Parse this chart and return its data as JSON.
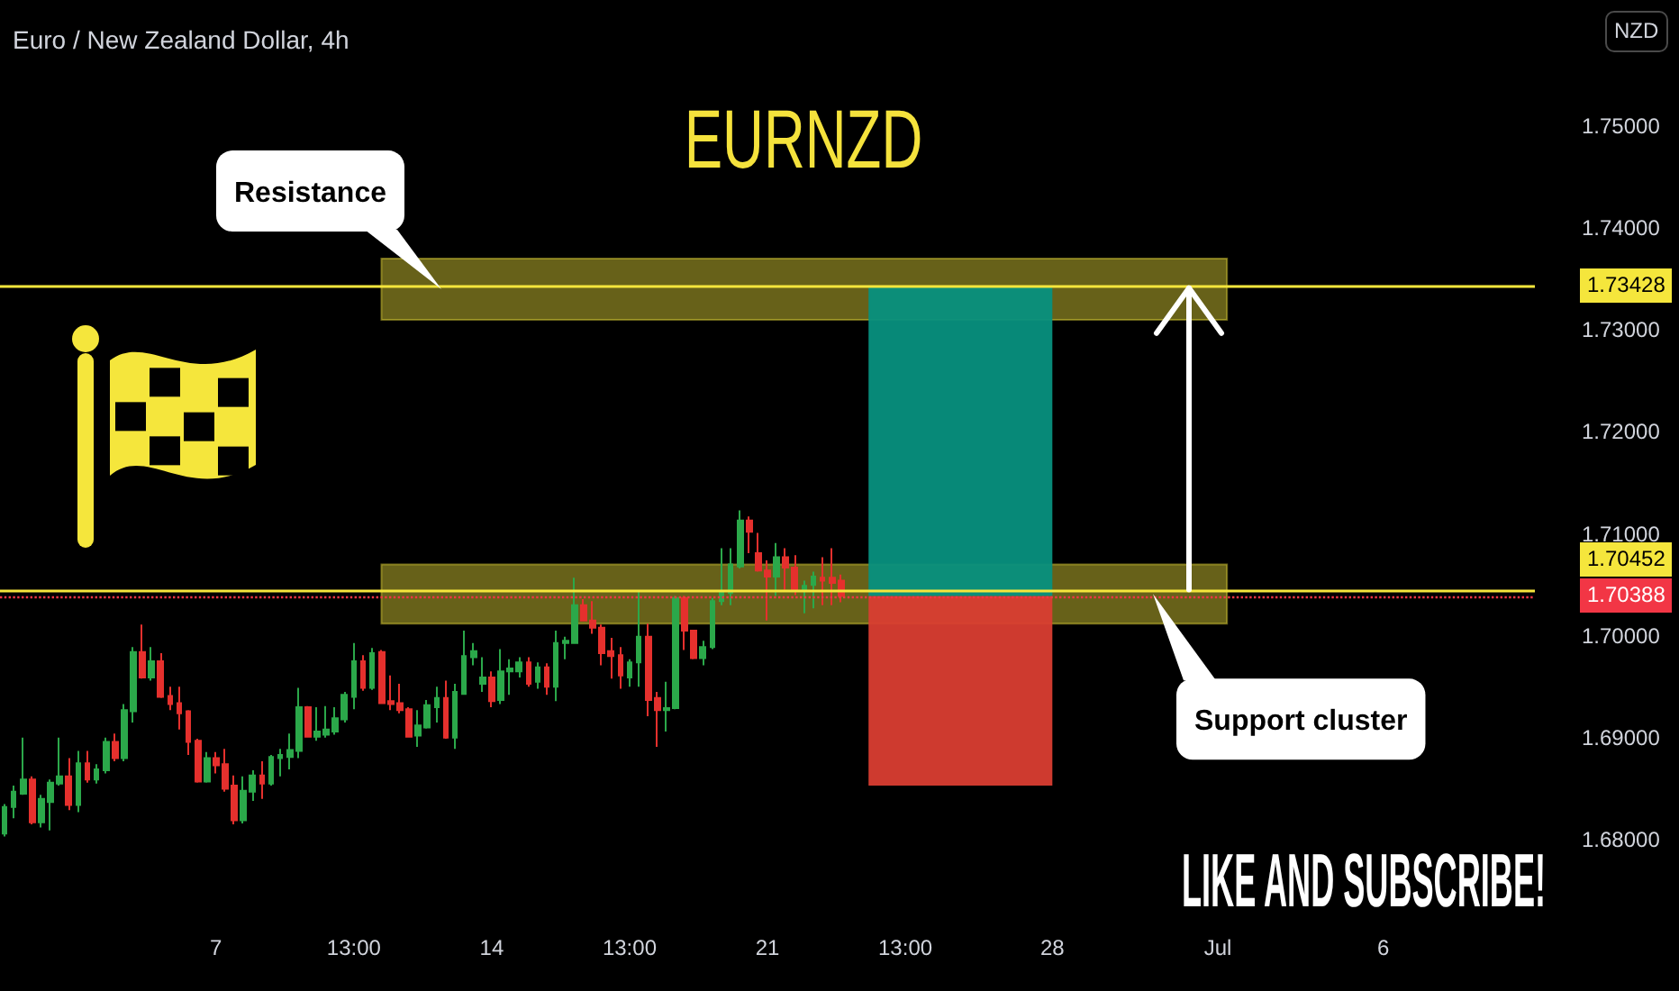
{
  "chart_data": {
    "type": "candlestick",
    "title": "EURNZD",
    "subtitle": "Euro / New Zealand Dollar, 4h",
    "ylabel": "NZD",
    "annotations": [
      "LIKE AND SUBSCRIBE!"
    ],
    "categories": [
      null,
      null,
      null,
      null,
      null,
      null,
      null,
      null,
      null,
      null,
      null,
      null,
      null,
      null,
      null,
      null,
      null,
      null,
      null,
      null,
      null,
      null,
      null,
      "7",
      null,
      null,
      null,
      null,
      null,
      null,
      null,
      null,
      null,
      null,
      null,
      null,
      null,
      null,
      "13:00",
      null,
      null,
      null,
      null,
      null,
      null,
      null,
      null,
      null,
      null,
      null,
      null,
      null,
      null,
      "14",
      null,
      null,
      null,
      null,
      null,
      null,
      null,
      null,
      null,
      null,
      null,
      null,
      null,
      null,
      "13:00",
      null,
      null,
      null,
      null,
      null,
      null,
      null,
      null,
      null,
      null,
      null,
      null,
      null,
      null,
      "21",
      null,
      null,
      null,
      null,
      null,
      null,
      null,
      null,
      null,
      null,
      null,
      null,
      null,
      null,
      "13:00",
      null,
      null,
      null,
      null,
      null,
      null,
      null,
      null,
      null,
      null,
      null,
      null,
      null,
      null,
      null,
      "28",
      null,
      null,
      null,
      null,
      null,
      null,
      null,
      null,
      null,
      null,
      null,
      null,
      null,
      null,
      null,
      null,
      null,
      "Jul",
      null,
      null,
      null,
      null,
      null,
      null,
      null,
      null,
      null,
      null,
      null,
      null,
      null,
      null,
      null,
      null,
      null,
      "6",
      null,
      null,
      null,
      null,
      null,
      null,
      null,
      null,
      null,
      null,
      null,
      null,
      null,
      null,
      null,
      null
    ],
    "ohlc": [
      [
        1.6806,
        1.6835,
        1.6803,
        1.6832
      ],
      [
        1.6832,
        1.6853,
        1.6821,
        1.6847
      ],
      [
        1.6845,
        1.69,
        1.6844,
        1.6859
      ],
      [
        1.6859,
        1.6862,
        1.6815,
        1.6817
      ],
      [
        1.6817,
        1.6844,
        1.6812,
        1.684
      ],
      [
        1.6837,
        1.6859,
        1.6809,
        1.6856
      ],
      [
        1.6855,
        1.69,
        1.6853,
        1.6862
      ],
      [
        1.6862,
        1.688,
        1.6829,
        1.6834
      ],
      [
        1.6834,
        1.6887,
        1.6827,
        1.6875
      ],
      [
        1.6875,
        1.6887,
        1.6856,
        1.6859
      ],
      [
        1.6859,
        1.6874,
        1.6855,
        1.6869
      ],
      [
        1.6868,
        1.69,
        1.6865,
        1.6896
      ],
      [
        1.6896,
        1.6904,
        1.6877,
        1.688
      ],
      [
        1.688,
        1.6933,
        1.6877,
        1.6927
      ],
      [
        1.6926,
        1.6989,
        1.6915,
        1.6984
      ],
      [
        1.6984,
        1.7011,
        1.6958,
        1.6959
      ],
      [
        1.6959,
        1.6989,
        1.6956,
        1.6975
      ],
      [
        1.6975,
        1.6983,
        1.6939,
        1.694
      ],
      [
        1.6941,
        1.695,
        1.6927,
        1.6933
      ],
      [
        1.6934,
        1.695,
        1.6908,
        1.6924
      ],
      [
        1.6926,
        1.6927,
        1.6883,
        1.6896
      ],
      [
        1.6897,
        1.6899,
        1.6856,
        1.6857
      ],
      [
        1.6857,
        1.6886,
        1.6856,
        1.688
      ],
      [
        1.688,
        1.6886,
        1.6865,
        1.6873
      ],
      [
        1.6874,
        1.6889,
        1.6847,
        1.685
      ],
      [
        1.6853,
        1.6863,
        1.6815,
        1.6819
      ],
      [
        1.6819,
        1.6862,
        1.6816,
        1.6848
      ],
      [
        1.6847,
        1.6868,
        1.6838,
        1.6863
      ],
      [
        1.6863,
        1.6877,
        1.684,
        1.6855
      ],
      [
        1.6855,
        1.6883,
        1.6853,
        1.6881
      ],
      [
        1.688,
        1.6889,
        1.6862,
        1.6883
      ],
      [
        1.6881,
        1.6904,
        1.6869,
        1.6888
      ],
      [
        1.6887,
        1.6949,
        1.688,
        1.693
      ],
      [
        1.693,
        1.6931,
        1.69,
        1.6901
      ],
      [
        1.6901,
        1.693,
        1.6897,
        1.6906
      ],
      [
        1.6903,
        1.6931,
        1.69,
        1.6908
      ],
      [
        1.6906,
        1.693,
        1.6903,
        1.6919
      ],
      [
        1.6918,
        1.6945,
        1.6915,
        1.6942
      ],
      [
        1.694,
        1.6993,
        1.6928,
        1.6975
      ],
      [
        1.6975,
        1.6981,
        1.6946,
        1.6949
      ],
      [
        1.6949,
        1.6988,
        1.6947,
        1.6983
      ],
      [
        1.6984,
        1.6986,
        1.6933,
        1.6934
      ],
      [
        1.6936,
        1.6961,
        1.6927,
        1.6933
      ],
      [
        1.6934,
        1.6953,
        1.6924,
        1.6927
      ],
      [
        1.6928,
        1.693,
        1.69,
        1.6901
      ],
      [
        1.6902,
        1.6927,
        1.6891,
        1.6912
      ],
      [
        1.691,
        1.6937,
        1.6909,
        1.6932
      ],
      [
        1.693,
        1.695,
        1.6915,
        1.6939
      ],
      [
        1.6939,
        1.6956,
        1.6899,
        1.69
      ],
      [
        1.69,
        1.6953,
        1.6889,
        1.6945
      ],
      [
        1.6943,
        1.7005,
        1.6942,
        1.698
      ],
      [
        1.6979,
        1.6993,
        1.6971,
        1.6985
      ],
      [
        1.6953,
        1.6979,
        1.6945,
        1.6959
      ],
      [
        1.6959,
        1.6965,
        1.693,
        1.6936
      ],
      [
        1.6937,
        1.6987,
        1.6933,
        1.6965
      ],
      [
        1.6965,
        1.6977,
        1.6942,
        1.6968
      ],
      [
        1.6965,
        1.6979,
        1.6959,
        1.6974
      ],
      [
        1.6974,
        1.6979,
        1.695,
        1.6953
      ],
      [
        1.6955,
        1.6974,
        1.6948,
        1.6969
      ],
      [
        1.6969,
        1.6973,
        1.6942,
        1.695
      ],
      [
        1.695,
        1.7005,
        1.6936,
        1.6993
      ],
      [
        1.6993,
        1.6999,
        1.6977,
        1.6995
      ],
      [
        1.6993,
        1.7057,
        1.6992,
        1.703
      ],
      [
        1.703,
        1.7036,
        1.7014,
        1.7015
      ],
      [
        1.7015,
        1.7034,
        1.7002,
        1.7008
      ],
      [
        1.7008,
        1.7011,
        1.6971,
        1.6983
      ],
      [
        1.6985,
        1.6998,
        1.6958,
        1.698
      ],
      [
        1.6981,
        1.6989,
        1.6948,
        1.6961
      ],
      [
        1.6959,
        1.6977,
        1.695,
        1.6974
      ],
      [
        1.6974,
        1.7044,
        1.695,
        1.6999
      ],
      [
        1.6999,
        1.7012,
        1.6921,
        1.6937
      ],
      [
        1.6939,
        1.6945,
        1.6891,
        1.6927
      ],
      [
        1.6927,
        1.6955,
        1.6906,
        1.6929
      ],
      [
        1.6929,
        1.7039,
        1.6928,
        1.7037
      ],
      [
        1.7037,
        1.7039,
        1.6986,
        1.7005
      ],
      [
        1.7005,
        1.7006,
        1.6977,
        1.6978
      ],
      [
        1.6978,
        1.6995,
        1.6971,
        1.6989
      ],
      [
        1.6989,
        1.7037,
        1.6987,
        1.7034
      ],
      [
        1.7034,
        1.7086,
        1.703,
        1.7044
      ],
      [
        1.7042,
        1.7086,
        1.703,
        1.707
      ],
      [
        1.7068,
        1.7123,
        1.7066,
        1.7113
      ],
      [
        1.7113,
        1.7117,
        1.7081,
        1.7102
      ],
      [
        1.7081,
        1.7101,
        1.7063,
        1.7064
      ],
      [
        1.7064,
        1.7074,
        1.7015,
        1.7058
      ],
      [
        1.7058,
        1.7091,
        1.7039,
        1.7077
      ],
      [
        1.7077,
        1.7086,
        1.7045,
        1.7067
      ],
      [
        1.7067,
        1.7079,
        1.704,
        1.7045
      ],
      [
        1.7044,
        1.7054,
        1.7022,
        1.7049
      ],
      [
        1.705,
        1.7063,
        1.7027,
        1.7058
      ],
      [
        1.7057,
        1.7077,
        1.703,
        1.7054
      ],
      [
        1.7057,
        1.7086,
        1.703,
        1.7052
      ],
      [
        1.7054,
        1.706,
        1.7033,
        1.7039
      ],
      null,
      null,
      null,
      null,
      null,
      null,
      null,
      null,
      null,
      null,
      null,
      null,
      null,
      null,
      null,
      null,
      null,
      null,
      null,
      null,
      null,
      null,
      null,
      null,
      null,
      null,
      null,
      null,
      null,
      null,
      null,
      null,
      null,
      null,
      null,
      null,
      null,
      null,
      null,
      null,
      null,
      null,
      null,
      null,
      null,
      null,
      null,
      null,
      null,
      null,
      null,
      null,
      null,
      null,
      null,
      null,
      null,
      null,
      null,
      null,
      null,
      null,
      null,
      null,
      null,
      null,
      null,
      null,
      null,
      null,
      null,
      null,
      null,
      null,
      null
    ],
    "colors": [
      "#2ba84a",
      "#2ba84a",
      "#2ba84a",
      "#e5302d",
      "#2ba84a",
      "#2ba84a",
      "#2ba84a",
      "#e5302d",
      "#2ba84a",
      "#e5302d",
      "#2ba84a",
      "#2ba84a",
      "#e5302d",
      "#2ba84a",
      "#2ba84a",
      "#e5302d",
      "#2ba84a",
      "#e5302d",
      "#e5302d",
      "#e5302d",
      "#e5302d",
      "#e5302d",
      "#2ba84a",
      "#e5302d",
      "#e5302d",
      "#e5302d",
      "#2ba84a",
      "#2ba84a",
      "#e5302d",
      "#2ba84a",
      "#2ba84a",
      "#2ba84a",
      "#2ba84a",
      "#e5302d",
      "#2ba84a",
      "#2ba84a",
      "#2ba84a",
      "#2ba84a",
      "#2ba84a",
      "#e5302d",
      "#2ba84a",
      "#e5302d",
      "#e5302d",
      "#e5302d",
      "#e5302d",
      "#2ba84a",
      "#2ba84a",
      "#2ba84a",
      "#e5302d",
      "#2ba84a",
      "#2ba84a",
      "#2ba84a",
      "#2ba84a",
      "#e5302d",
      "#2ba84a",
      "#2ba84a",
      "#2ba84a",
      "#e5302d",
      "#2ba84a",
      "#e5302d",
      "#2ba84a",
      "#2ba84a",
      "#2ba84a",
      "#e5302d",
      "#e5302d",
      "#e5302d",
      "#e5302d",
      "#e5302d",
      "#2ba84a",
      "#2ba84a",
      "#e5302d",
      "#e5302d",
      "#2ba84a",
      "#2ba84a",
      "#e5302d",
      "#e5302d",
      "#2ba84a",
      "#2ba84a",
      "#2ba84a",
      "#2ba84a",
      "#2ba84a",
      "#e5302d",
      "#e5302d",
      "#e5302d",
      "#2ba84a",
      "#e5302d",
      "#e5302d",
      "#2ba84a",
      "#2ba84a",
      "#e5302d",
      "#e5302d",
      "#e5302d",
      null,
      null,
      null,
      null,
      null,
      null,
      null,
      null,
      null,
      null,
      null,
      null,
      null,
      null,
      null,
      null,
      null,
      null,
      null,
      null,
      null,
      null,
      null,
      null,
      null,
      null,
      null,
      null,
      null,
      null,
      null,
      null,
      null,
      null,
      null,
      null,
      null,
      null,
      null,
      null,
      null,
      null,
      null,
      null,
      null,
      null,
      null,
      null,
      null,
      null,
      null,
      null,
      null,
      null,
      null,
      null,
      null,
      null,
      null,
      null,
      null,
      null,
      null,
      null,
      null,
      null,
      null,
      null,
      null,
      null,
      null,
      null,
      null,
      null,
      null
    ],
    "ylim": [
      1.68,
      1.75
    ],
    "yticks": [
      {
        "value": 1.68,
        "label": "1.68000"
      },
      {
        "value": 1.69,
        "label": "1.69000"
      },
      {
        "value": 1.7,
        "label": "1.70000"
      },
      {
        "value": 1.71,
        "label": "1.71000"
      },
      {
        "value": 1.72,
        "label": "1.72000"
      },
      {
        "value": 1.73,
        "label": "1.73000"
      },
      {
        "value": 1.74,
        "label": "1.74000"
      },
      {
        "value": 1.75,
        "label": "1.75000"
      }
    ],
    "ref_lines": [
      {
        "axis": "y",
        "value": 1.73428,
        "label": "1.73428",
        "color": "#f5e63c"
      },
      {
        "axis": "y",
        "value": 1.70452,
        "label": "1.70452",
        "color": "#f5e63c"
      },
      {
        "axis": "y",
        "value": 1.70388,
        "label": "1.70388",
        "color": "#f23645",
        "line_style": "dotted"
      }
    ],
    "bands": [
      {
        "axis": "y",
        "from": 1.731,
        "to": 1.737,
        "label": "Resistance",
        "color": "#f5e63c"
      },
      {
        "axis": "y",
        "from": 1.7012,
        "to": 1.707,
        "label": "Support cluster",
        "color": "#f5e63c"
      },
      {
        "axis": "y",
        "from": 1.70388,
        "to": 1.73428,
        "color": "#07907e"
      },
      {
        "axis": "y",
        "from": 1.6853,
        "to": 1.70388,
        "color": "#d93d31"
      }
    ]
  }
}
